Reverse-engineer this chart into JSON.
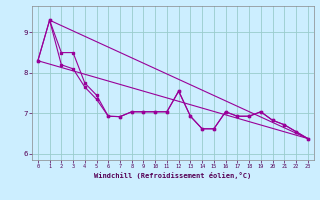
{
  "xlabel": "Windchill (Refroidissement éolien,°C)",
  "background_color": "#cceeff",
  "grid_color": "#99cccc",
  "line_color": "#990099",
  "xlim": [
    -0.5,
    23.5
  ],
  "ylim": [
    5.85,
    9.65
  ],
  "yticks": [
    6,
    7,
    8,
    9
  ],
  "xticks": [
    0,
    1,
    2,
    3,
    4,
    5,
    6,
    7,
    8,
    9,
    10,
    11,
    12,
    13,
    14,
    15,
    16,
    17,
    18,
    19,
    20,
    21,
    22,
    23
  ],
  "line1_x": [
    0,
    1,
    2,
    3,
    4,
    5,
    6,
    7,
    8,
    9,
    10,
    11,
    12,
    13,
    14,
    15,
    16,
    17,
    18,
    19,
    20,
    21,
    22,
    23
  ],
  "line1_y": [
    8.3,
    9.3,
    8.5,
    8.5,
    7.75,
    7.45,
    6.93,
    6.92,
    7.04,
    7.04,
    7.04,
    7.04,
    7.55,
    6.93,
    6.62,
    6.62,
    7.04,
    6.93,
    6.93,
    7.04,
    6.83,
    6.72,
    6.55,
    6.38
  ],
  "line2_x": [
    0,
    1,
    2,
    3,
    4,
    5,
    6,
    7,
    8,
    9,
    10,
    11,
    12,
    13,
    14,
    15,
    16,
    17,
    18,
    19,
    20,
    21,
    22,
    23
  ],
  "line2_y": [
    8.3,
    9.3,
    8.2,
    8.1,
    7.65,
    7.35,
    6.93,
    6.92,
    7.04,
    7.04,
    7.04,
    7.04,
    7.55,
    6.93,
    6.62,
    6.62,
    7.04,
    6.93,
    6.93,
    7.04,
    6.83,
    6.72,
    6.55,
    6.38
  ],
  "line3_x": [
    1,
    23
  ],
  "line3_y": [
    9.3,
    6.38
  ],
  "line4_x": [
    0,
    23
  ],
  "line4_y": [
    8.3,
    6.38
  ]
}
